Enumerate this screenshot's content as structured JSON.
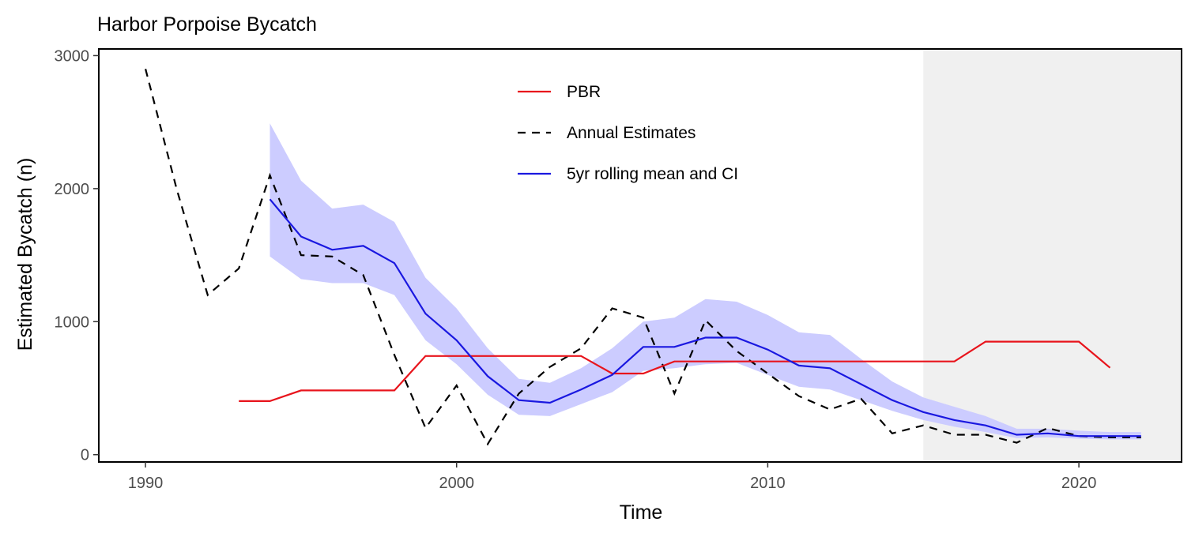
{
  "chart_data": {
    "type": "line",
    "title": "Harbor Porpoise Bycatch",
    "xlabel": "Time",
    "ylabel": "Estimated Bycatch (n)",
    "xlim": [
      1988.5,
      2023.3
    ],
    "ylim": [
      -55,
      3050
    ],
    "xticks": [
      1990,
      2000,
      2010,
      2020
    ],
    "yticks": [
      0,
      1000,
      2000,
      3000
    ],
    "grid": false,
    "legend_position": "top-center",
    "shaded_region": {
      "x_start": 2015,
      "x_end": 2023.3,
      "color": "#f0f0f0"
    },
    "series": [
      {
        "name": "PBR",
        "style": "solid",
        "color": "#e8141c",
        "x": [
          1993,
          1994,
          1995,
          1996,
          1997,
          1998,
          1999,
          2000,
          2001,
          2002,
          2003,
          2004,
          2005,
          2006,
          2007,
          2008,
          2009,
          2010,
          2011,
          2012,
          2013,
          2014,
          2015,
          2016,
          2017,
          2018,
          2019,
          2020,
          2021
        ],
        "values": [
          403,
          403,
          483,
          483,
          483,
          483,
          742,
          742,
          742,
          742,
          742,
          742,
          610,
          610,
          701,
          701,
          701,
          701,
          701,
          701,
          701,
          701,
          701,
          701,
          850,
          850,
          850,
          850,
          653
        ]
      },
      {
        "name": "Annual Estimates",
        "style": "dashed",
        "color": "#000000",
        "x": [
          1990,
          1991,
          1992,
          1993,
          1994,
          1995,
          1996,
          1997,
          1998,
          1999,
          2000,
          2001,
          2002,
          2003,
          2004,
          2005,
          2006,
          2007,
          2008,
          2009,
          2010,
          2011,
          2012,
          2013,
          2014,
          2015,
          2016,
          2017,
          2018,
          2019,
          2020,
          2021,
          2022
        ],
        "values": [
          2900,
          2000,
          1200,
          1400,
          2100,
          1500,
          1490,
          1350,
          750,
          200,
          520,
          80,
          460,
          660,
          800,
          1100,
          1030,
          460,
          1010,
          780,
          610,
          440,
          340,
          420,
          160,
          220,
          150,
          150,
          90,
          200,
          140,
          130,
          130
        ]
      },
      {
        "name": "5yr rolling mean and CI",
        "style": "solid",
        "color": "#1a18e0",
        "x": [
          1994,
          1995,
          1996,
          1997,
          1998,
          1999,
          2000,
          2001,
          2002,
          2003,
          2004,
          2005,
          2006,
          2007,
          2008,
          2009,
          2010,
          2011,
          2012,
          2013,
          2014,
          2015,
          2016,
          2017,
          2018,
          2019,
          2020,
          2021,
          2022
        ],
        "values": [
          1920,
          1640,
          1540,
          1570,
          1440,
          1060,
          860,
          590,
          410,
          390,
          490,
          600,
          810,
          810,
          880,
          880,
          790,
          670,
          650,
          530,
          410,
          320,
          260,
          220,
          150,
          160,
          140,
          140,
          140
        ],
        "ci_lower": [
          1490,
          1320,
          1290,
          1290,
          1200,
          860,
          680,
          450,
          300,
          290,
          380,
          470,
          630,
          650,
          680,
          690,
          600,
          510,
          490,
          410,
          330,
          260,
          210,
          170,
          125,
          130,
          120,
          115,
          115
        ],
        "ci_upper": [
          2490,
          2060,
          1850,
          1880,
          1750,
          1330,
          1100,
          800,
          570,
          540,
          650,
          800,
          1000,
          1030,
          1170,
          1150,
          1050,
          920,
          900,
          720,
          550,
          430,
          360,
          290,
          195,
          195,
          180,
          170,
          170
        ],
        "ci_color": "#ccccff"
      }
    ],
    "legend_entries": [
      {
        "label": "PBR",
        "style": "solid",
        "color": "#e8141c"
      },
      {
        "label": "Annual Estimates",
        "style": "dashed",
        "color": "#000000"
      },
      {
        "label": "5yr rolling mean and CI",
        "style": "solid",
        "color": "#1a18e0"
      }
    ]
  }
}
